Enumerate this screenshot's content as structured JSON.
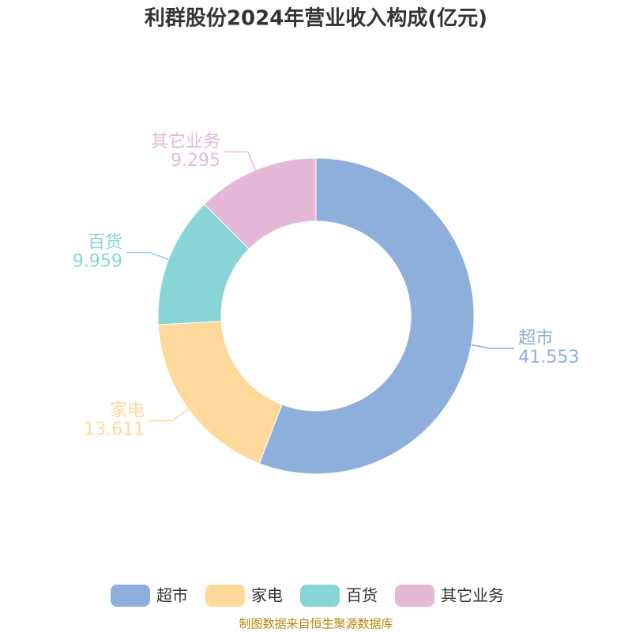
{
  "chart_data": {
    "type": "donut",
    "title": "利群股份2024年营业收入构成(亿元)",
    "categories": [
      "超市",
      "家电",
      "百货",
      "其它业务"
    ],
    "values": [
      41.553,
      13.611,
      9.959,
      9.295
    ],
    "colors": [
      "#8eaedb",
      "#fed99b",
      "#88d5d7",
      "#e5b8d8"
    ],
    "source": "制图数据来自恒生聚源数据库"
  }
}
